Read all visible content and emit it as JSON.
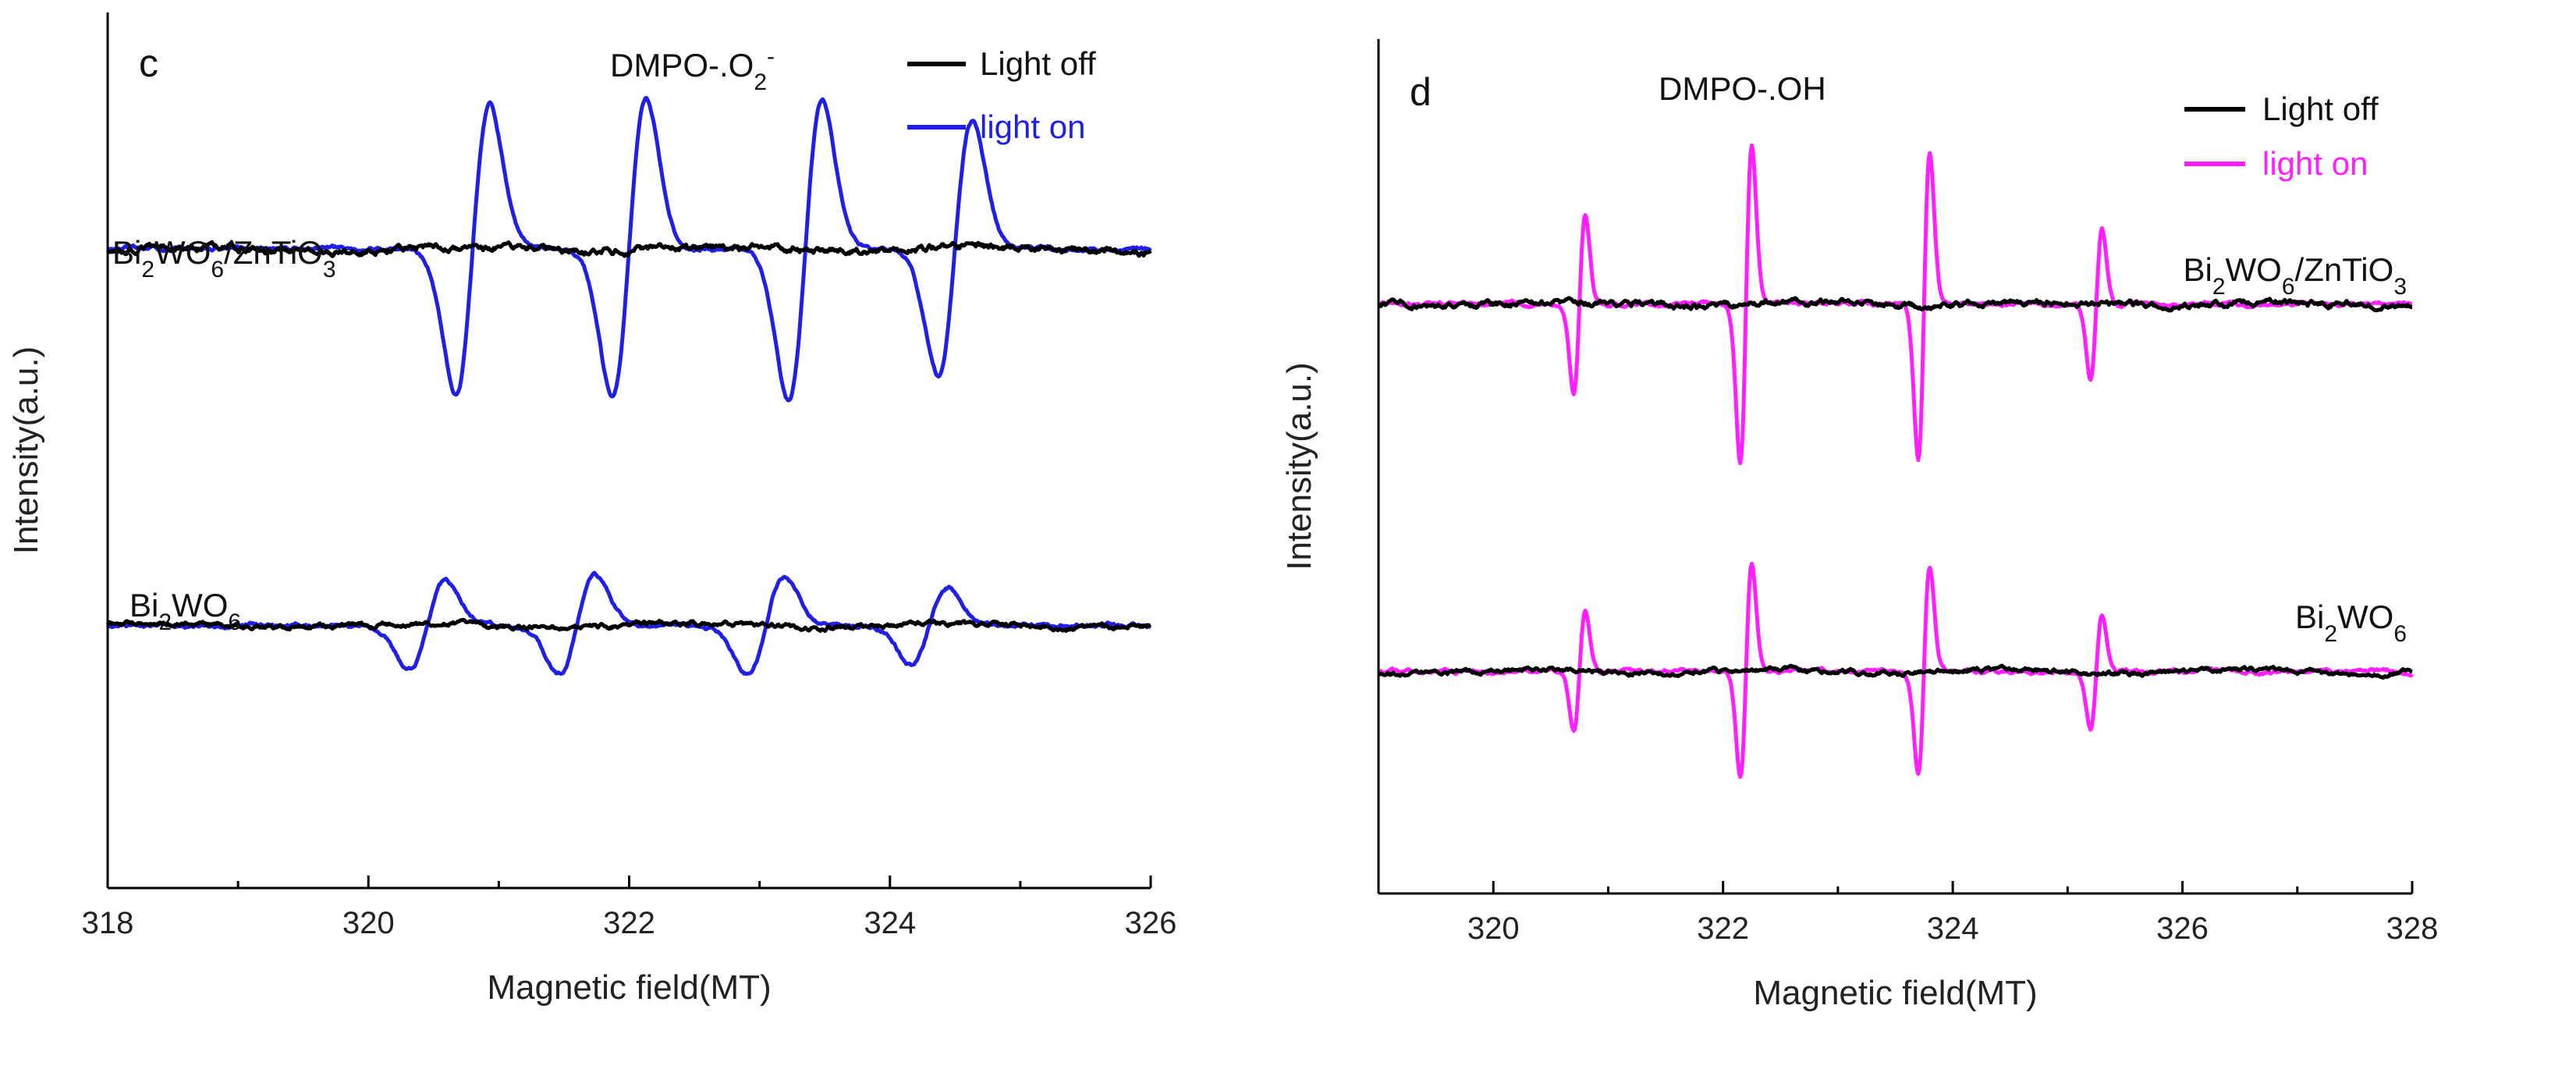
{
  "chart_data": [
    {
      "type": "line",
      "panel_label": "c",
      "title": "DMPO-.O2-",
      "title_parts": {
        "base": "DMPO-.O",
        "sub": "2",
        "sup": "-"
      },
      "xlabel": "Magnetic field(MT)",
      "ylabel": "Intensity(a.u.)",
      "xlim": [
        318,
        326
      ],
      "ylim": [
        0,
        100
      ],
      "x_ticks": [
        318,
        320,
        322,
        324,
        326
      ],
      "legend": [
        {
          "label": "Light off",
          "color": "#000000"
        },
        {
          "label": "light on",
          "color": "#1f1fe8"
        }
      ],
      "legend_position": "top-right",
      "samples": [
        {
          "name": "Bi2WO6/ZnTiO3",
          "label_parts": [
            [
              "Bi",
              ""
            ],
            [
              "2",
              "sub"
            ],
            [
              "WO",
              ""
            ],
            [
              "6",
              "sub"
            ],
            [
              "/ZnTiO",
              ""
            ],
            [
              "3",
              "sub"
            ]
          ],
          "baseline": 73,
          "light_off_noise": 0.5,
          "light_on_lines": [
            {
              "center": 320.8,
              "amplitude": 16.5,
              "sigma": 0.13
            },
            {
              "center": 322.0,
              "amplitude": 17.0,
              "sigma": 0.13
            },
            {
              "center": 323.35,
              "amplitude": 17.2,
              "sigma": 0.13
            },
            {
              "center": 324.5,
              "amplitude": 14.5,
              "sigma": 0.13
            }
          ]
        },
        {
          "name": "Bi2WO6",
          "label_parts": [
            [
              "Bi",
              ""
            ],
            [
              "2",
              "sub"
            ],
            [
              "WO",
              ""
            ],
            [
              "6",
              "sub"
            ]
          ],
          "baseline": 30,
          "light_off_noise": 0.35,
          "light_on_lines": [
            {
              "center": 320.45,
              "amplitude": 5.0,
              "sigma": 0.14
            },
            {
              "center": 321.6,
              "amplitude": 5.5,
              "sigma": 0.14
            },
            {
              "center": 323.05,
              "amplitude": 5.5,
              "sigma": 0.14
            },
            {
              "center": 324.3,
              "amplitude": 4.5,
              "sigma": 0.14
            }
          ]
        }
      ]
    },
    {
      "type": "line",
      "panel_label": "d",
      "title": "DMPO-.OH",
      "xlabel": "Magnetic field(MT)",
      "ylabel": "Intensity(a.u.)",
      "xlim": [
        319,
        328
      ],
      "ylim": [
        0,
        100
      ],
      "x_ticks": [
        320,
        322,
        324,
        326,
        328
      ],
      "legend": [
        {
          "label": "Light off",
          "color": "#000000"
        },
        {
          "label": "light on",
          "color": "#ff1eff"
        }
      ],
      "legend_position": "top-right",
      "samples": [
        {
          "name": "Bi2WO6/ZnTiO3",
          "label_parts": [
            [
              "Bi",
              ""
            ],
            [
              "2",
              "sub"
            ],
            [
              "WO",
              ""
            ],
            [
              "6",
              "sub"
            ],
            [
              "/ZnTiO",
              ""
            ],
            [
              "3",
              "sub"
            ]
          ],
          "baseline": 69,
          "light_off_noise": 0.45,
          "light_on_lines": [
            {
              "center": 320.75,
              "amplitude": 10.5,
              "sigma": 0.05
            },
            {
              "center": 322.2,
              "amplitude": 18.5,
              "sigma": 0.05
            },
            {
              "center": 323.75,
              "amplitude": 18.0,
              "sigma": 0.05
            },
            {
              "center": 325.25,
              "amplitude": 9.0,
              "sigma": 0.05
            }
          ]
        },
        {
          "name": "Bi2WO6",
          "label_parts": [
            [
              "Bi",
              ""
            ],
            [
              "2",
              "sub"
            ],
            [
              "WO",
              ""
            ],
            [
              "6",
              "sub"
            ]
          ],
          "baseline": 26,
          "light_off_noise": 0.35,
          "light_on_lines": [
            {
              "center": 320.75,
              "amplitude": 7.0,
              "sigma": 0.05
            },
            {
              "center": 322.2,
              "amplitude": 12.5,
              "sigma": 0.05
            },
            {
              "center": 323.75,
              "amplitude": 12.0,
              "sigma": 0.05
            },
            {
              "center": 325.25,
              "amplitude": 6.5,
              "sigma": 0.05
            }
          ]
        }
      ]
    }
  ]
}
